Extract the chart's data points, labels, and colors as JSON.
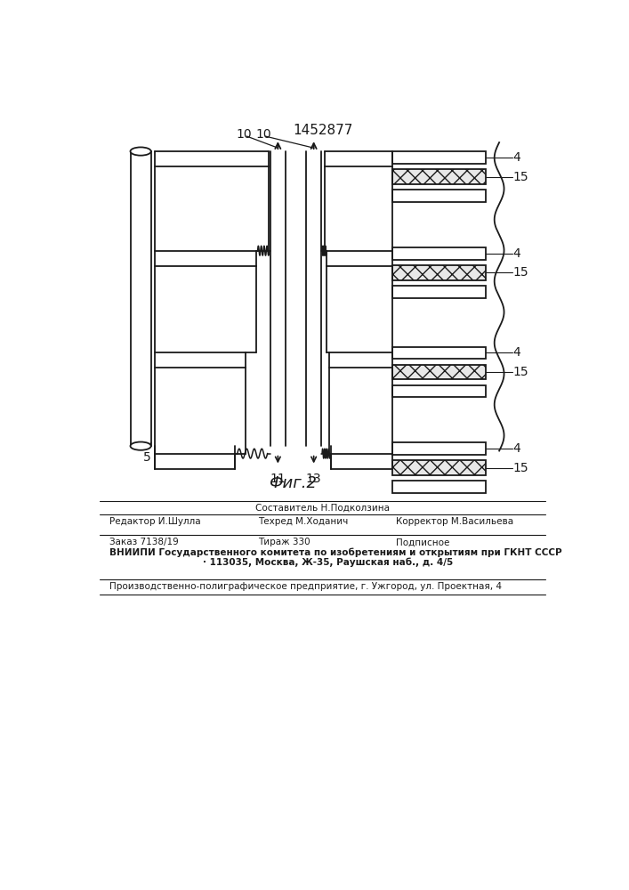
{
  "title": "1452877",
  "bg": "#ffffff",
  "lc": "#1a1a1a",
  "lw": 1.3,
  "footer": {
    "line1_center": "Составитель Н.Подколзина",
    "line2_left": "Редактор И.Шулла",
    "line2_mid": "Техред М.Ходанич",
    "line2_right": "Корректор М.Васильева",
    "line3_left": "Заказ 7138/19",
    "line3_mid": "Тираж 330",
    "line3_right": "Подписное",
    "line4": "ВНИИПИ Государственного комитета по изобретениям и открытиям при ГКНТ СССР",
    "line5": "· 113035, Москва, Ж-35, Раушская наб., д. 4/5",
    "line6": "Производственно-полиграфическое предприятие, г. Ужгород, ул. Проектная, 4"
  }
}
